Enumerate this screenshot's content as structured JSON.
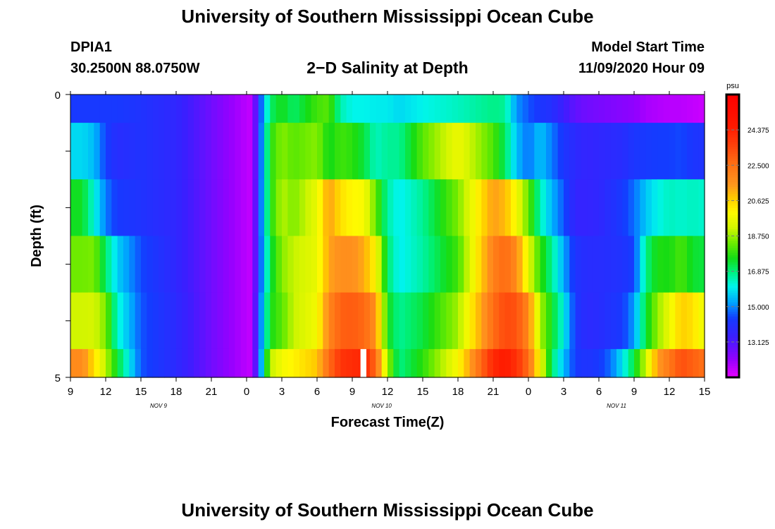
{
  "header": {
    "title": "University of Southern Mississippi Ocean Cube",
    "station": "DPIA1",
    "coordinates": "30.2500N 88.0750W",
    "subtitle": "2−D Salinity at Depth",
    "start_label": "Model Start Time",
    "start_value": "11/09/2020 Hour 09"
  },
  "footer": {
    "title": "University of Southern Mississippi Ocean Cube"
  },
  "chart_data": {
    "type": "heatmap",
    "title": "2-D Salinity at Depth",
    "xlabel": "Forecast Time(Z)",
    "ylabel": "Depth (ft)",
    "x_hours": [
      0,
      3,
      6,
      9,
      12,
      15,
      18,
      21,
      24,
      27,
      30,
      33,
      36,
      39,
      42,
      45,
      48,
      51,
      54
    ],
    "x_tick_labels": [
      "9",
      "12",
      "15",
      "18",
      "21",
      "0",
      "3",
      "6",
      "9",
      "12",
      "15",
      "18",
      "21",
      "0",
      "3",
      "6",
      "9",
      "12",
      "15"
    ],
    "date_labels": [
      {
        "label": "NOV  9",
        "hour": 7.5
      },
      {
        "label": "NOV  10",
        "hour": 26.5
      },
      {
        "label": "NOV  11",
        "hour": 46.5
      }
    ],
    "ylim": [
      0,
      5
    ],
    "y_tick_labels": [
      "0",
      "5"
    ],
    "depth_levels": [
      0,
      1,
      2,
      3,
      4,
      5
    ],
    "colorbar": {
      "unit": "psu",
      "min": 11.25,
      "max": 26.25,
      "tick_values": [
        13.125,
        15.0,
        16.875,
        18.75,
        20.625,
        22.5,
        24.375
      ],
      "tick_labels": [
        "13.125",
        "15.000",
        "16.875",
        "18.750",
        "20.625",
        "22.500",
        "24.375"
      ]
    },
    "keyframes_hours": [
      0,
      1,
      2,
      3,
      4,
      6,
      9,
      12,
      15,
      15.5,
      16,
      17,
      18,
      19,
      21,
      22,
      23,
      24,
      25,
      26,
      27,
      28,
      30,
      33,
      36,
      37,
      38,
      39,
      40,
      41,
      42,
      43,
      44,
      45,
      46,
      47,
      48,
      49,
      50,
      51,
      52,
      53,
      54
    ],
    "salinity_rows": [
      {
        "depth": "0.0-0.5",
        "values": [
          14.3,
          14.3,
          14.3,
          14.3,
          14.3,
          14.1,
          13.7,
          12.7,
          11.8,
          11.7,
          14.0,
          17.0,
          17.6,
          17.0,
          18.0,
          18.2,
          16.5,
          16.1,
          16.1,
          16.0,
          16.0,
          15.8,
          16.1,
          16.4,
          16.8,
          16.7,
          15.1,
          14.6,
          14.2,
          14.0,
          13.4,
          12.9,
          12.7,
          12.6,
          12.5,
          12.4,
          12.3,
          12.0,
          11.9,
          11.8,
          11.8,
          11.7,
          11.6
        ]
      },
      {
        "depth": "0.5-1.5",
        "values": [
          15.8,
          15.8,
          15.5,
          14.4,
          13.9,
          14.1,
          13.7,
          12.7,
          11.8,
          11.7,
          14.0,
          17.7,
          18.6,
          18.2,
          18.6,
          17.5,
          18.0,
          17.8,
          17.3,
          16.4,
          16.7,
          16.7,
          18.2,
          19.7,
          18.1,
          17.1,
          15.5,
          14.8,
          15.6,
          14.9,
          14.2,
          13.8,
          13.6,
          13.7,
          13.8,
          13.9,
          14.2,
          14.3,
          14.4,
          14.4,
          14.5,
          14.2,
          14.1
        ]
      },
      {
        "depth": "1.5-2.5",
        "values": [
          17.5,
          17.5,
          16.2,
          14.9,
          14.3,
          14.1,
          13.7,
          12.7,
          11.8,
          11.7,
          14.1,
          17.6,
          19.0,
          18.5,
          19.6,
          21.4,
          20.4,
          20.0,
          19.9,
          18.3,
          16.6,
          16.0,
          16.7,
          18.5,
          21.4,
          21.0,
          19.8,
          18.3,
          16.5,
          15.4,
          14.6,
          13.6,
          13.6,
          13.7,
          14.0,
          14.3,
          14.8,
          15.6,
          16.1,
          16.4,
          16.3,
          16.4,
          16.3
        ]
      },
      {
        "depth": "2.5-3.5",
        "values": [
          18.4,
          18.4,
          18.5,
          17.0,
          15.7,
          14.5,
          13.7,
          12.7,
          11.8,
          11.7,
          14.1,
          17.2,
          18.6,
          19.1,
          19.6,
          21.3,
          21.7,
          21.7,
          21.2,
          20.0,
          17.0,
          16.0,
          16.6,
          18.0,
          22.1,
          22.7,
          21.8,
          19.5,
          17.9,
          16.7,
          15.3,
          14.1,
          13.9,
          13.9,
          14.0,
          14.1,
          14.4,
          16.8,
          17.7,
          17.6,
          18.1,
          17.4,
          17.3
        ]
      },
      {
        "depth": "3.5-4.5",
        "values": [
          19.2,
          19.2,
          19.3,
          18.5,
          16.3,
          14.6,
          13.8,
          12.7,
          11.8,
          11.7,
          14.3,
          17.6,
          18.2,
          19.1,
          19.8,
          21.9,
          22.9,
          23.0,
          22.7,
          21.7,
          17.6,
          16.7,
          17.3,
          18.8,
          22.6,
          23.4,
          23.2,
          21.9,
          18.9,
          17.5,
          16.1,
          14.2,
          13.8,
          13.9,
          14.1,
          14.3,
          15.2,
          17.3,
          18.7,
          19.6,
          20.7,
          20.4,
          19.6
        ]
      },
      {
        "depth": "4.5-5.0",
        "values": [
          21.8,
          21.8,
          20.5,
          19.0,
          17.4,
          14.6,
          13.8,
          12.7,
          11.8,
          11.7,
          14.2,
          19.0,
          19.8,
          20.1,
          20.8,
          22.6,
          23.9,
          24.1,
          24.3,
          22.7,
          18.8,
          16.8,
          17.8,
          19.9,
          24.2,
          24.6,
          24.0,
          22.6,
          19.8,
          17.0,
          15.5,
          14.3,
          14.1,
          14.3,
          14.8,
          15.9,
          17.3,
          19.2,
          21.4,
          22.3,
          23.3,
          22.9,
          22.5
        ]
      }
    ],
    "gap_marker": {
      "hour_start": 24.7,
      "hour_end": 25.2,
      "depth_from": 4.5,
      "depth_to": 5.0
    }
  }
}
